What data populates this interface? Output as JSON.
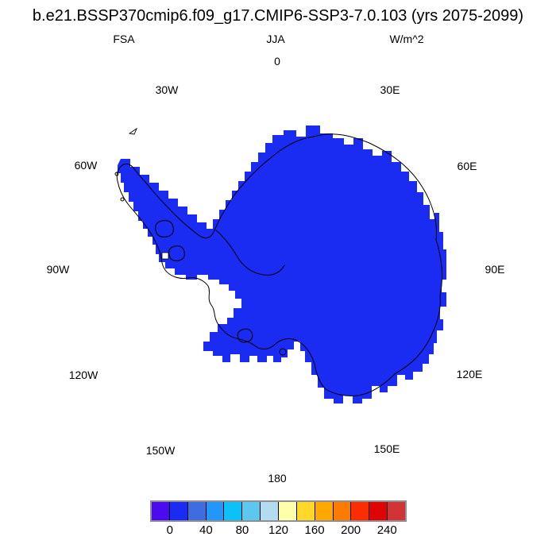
{
  "title": "b.e21.BSSP370cmip6.f09_g17.CMIP6-SSP3-7.0.103 (yrs 2075-2099)",
  "header": {
    "variable": "FSA",
    "season": "JJA",
    "units": "W/m^2"
  },
  "map": {
    "fill_color": "#1b2cf2",
    "outline_color": "#000000",
    "lon_labels": [
      "0",
      "30E",
      "60E",
      "90E",
      "120E",
      "150E",
      "180",
      "150W",
      "120W",
      "90W",
      "60W",
      "30W"
    ]
  },
  "colorbar": {
    "colors": [
      "#4c0bee",
      "#1b2cf2",
      "#3f6ce0",
      "#2396fc",
      "#0cc0f8",
      "#5cc8f0",
      "#b4dcf0",
      "#ffffaa",
      "#ffd829",
      "#ffa800",
      "#fb7c00",
      "#fb2e00",
      "#e00505",
      "#d13434"
    ],
    "tick_labels": [
      "0",
      "40",
      "80",
      "120",
      "160",
      "200",
      "240"
    ],
    "border_color": "#909090"
  },
  "chart_data": {
    "type": "heatmap",
    "title": "b.e21.BSSP370cmip6.f09_g17.CMIP6-SSP3-7.0.103 (yrs 2075-2099)",
    "variable": "FSA",
    "season": "JJA",
    "units": "W/m^2",
    "projection": "south polar stereographic",
    "region": "Antarctica",
    "contour_levels": [
      0,
      20,
      40,
      60,
      80,
      100,
      120,
      140,
      160,
      180,
      200,
      220,
      240
    ],
    "colorbar_tick_labels": [
      "0",
      "40",
      "80",
      "120",
      "160",
      "200",
      "240"
    ],
    "colorbar_colors": [
      "#4c0bee",
      "#1b2cf2",
      "#3f6ce0",
      "#2396fc",
      "#0cc0f8",
      "#5cc8f0",
      "#b4dcf0",
      "#ffffaa",
      "#ffd829",
      "#ffa800",
      "#fb7c00",
      "#fb2e00",
      "#e00505",
      "#d13434"
    ],
    "longitude_labels": [
      "0",
      "30E",
      "60E",
      "90E",
      "120E",
      "150E",
      "180",
      "150W",
      "120W",
      "90W",
      "60W",
      "30W"
    ],
    "field_summary": "Absorbed solar radiation (FSA) is uniformly in the 0-20 W/m^2 bin over the entire Antarctic continent during JJA (polar night); the whole landmass is filled with the dark blue 0-20 color.",
    "legend_position": "bottom"
  }
}
